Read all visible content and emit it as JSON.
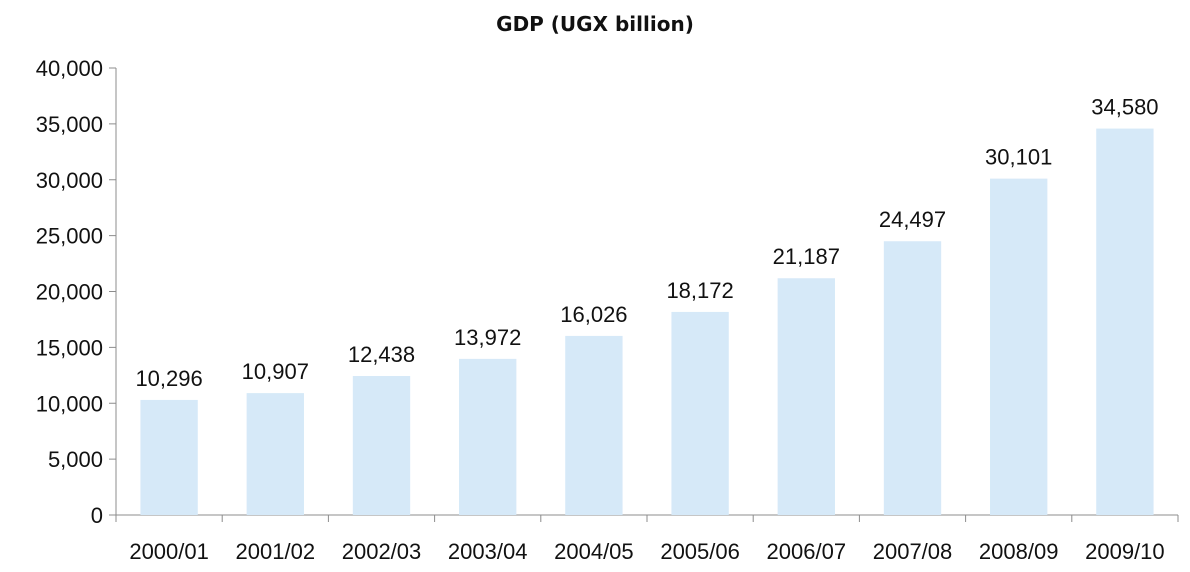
{
  "chart_data": {
    "type": "bar",
    "title": "GDP (UGX billion)",
    "categories": [
      "2000/01",
      "2001/02",
      "2002/03",
      "2003/04",
      "2004/05",
      "2005/06",
      "2006/07",
      "2007/08",
      "2008/09",
      "2009/10"
    ],
    "values": [
      10296,
      10907,
      12438,
      13972,
      16026,
      18172,
      21187,
      24497,
      30101,
      34580
    ],
    "data_labels": [
      "10,296",
      "10,907",
      "12,438",
      "13,972",
      "16,026",
      "18,172",
      "21,187",
      "24,497",
      "30,101",
      "34,580"
    ],
    "ylim": [
      0,
      40000
    ],
    "yticks": [
      0,
      5000,
      10000,
      15000,
      20000,
      25000,
      30000,
      35000,
      40000
    ],
    "ytick_labels": [
      "0",
      "5,000",
      "10,000",
      "15,000",
      "20,000",
      "25,000",
      "30,000",
      "35,000",
      "40,000"
    ],
    "grid": false,
    "legend": "none",
    "bar_color": "#d6e9f8"
  }
}
